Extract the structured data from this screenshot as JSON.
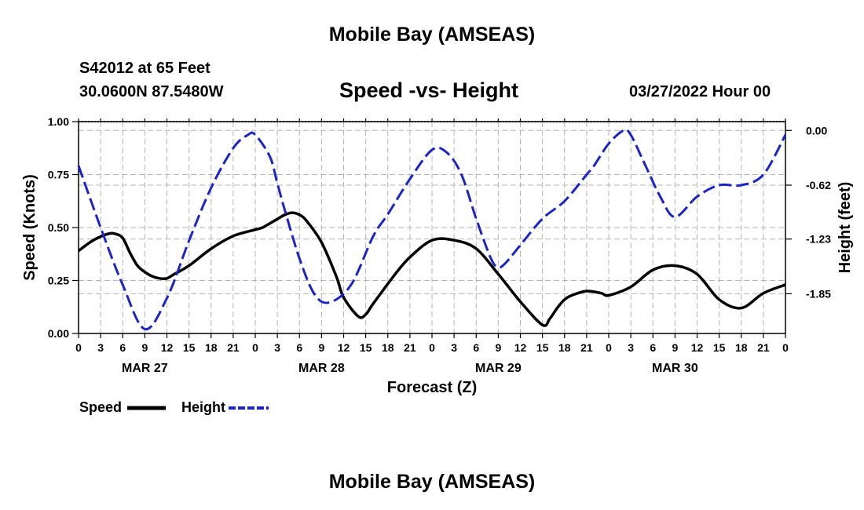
{
  "page": {
    "title": "Mobile Bay (AMSEAS)",
    "station": "S42012 at 65 Feet",
    "coordinates": "30.0600N  87.5480W",
    "datetime": "03/27/2022 Hour 00",
    "footer_title": "Mobile Bay (AMSEAS)"
  },
  "chart_data": {
    "type": "line",
    "title": "Speed -vs- Height",
    "xlabel": "Forecast (Z)",
    "ylabel_left": "Speed (Knots)",
    "ylabel_right": "Height (feet)",
    "x_unit": "forecast hour",
    "xlim": [
      0,
      96
    ],
    "ylim_left": [
      0,
      1.0
    ],
    "ylim_right": [
      -2.3,
      0.1
    ],
    "x_tick_hours": [
      0,
      3,
      6,
      9,
      12,
      15,
      18,
      21,
      24,
      27,
      30,
      33,
      36,
      39,
      42,
      45,
      48,
      51,
      54,
      57,
      60,
      63,
      66,
      69,
      72,
      75,
      78,
      81,
      84,
      87,
      90,
      93,
      96
    ],
    "x_tick_labels": [
      "0",
      "3",
      "6",
      "9",
      "12",
      "15",
      "18",
      "21",
      "0",
      "3",
      "6",
      "9",
      "12",
      "15",
      "18",
      "21",
      "0",
      "3",
      "6",
      "9",
      "12",
      "15",
      "18",
      "21",
      "0",
      "3",
      "6",
      "9",
      "12",
      "15",
      "18",
      "21",
      "0"
    ],
    "date_labels": [
      {
        "label": "MAR 27",
        "hour": 9
      },
      {
        "label": "MAR 28",
        "hour": 33
      },
      {
        "label": "MAR 29",
        "hour": 57
      },
      {
        "label": "MAR 30",
        "hour": 81
      }
    ],
    "y_left_ticks": [
      "0.00",
      "0.25",
      "0.50",
      "0.75",
      "1.00"
    ],
    "y_left_tick_values": [
      0,
      0.25,
      0.5,
      0.75,
      1.0
    ],
    "y_right_ticks": [
      "0.00",
      "-0.62",
      "-1.23",
      "-1.85"
    ],
    "y_right_tick_values": [
      0,
      -0.62,
      -1.23,
      -1.85
    ],
    "grid": true,
    "legend": "bottom-left",
    "series": [
      {
        "name": "Speed",
        "axis": "left",
        "style": "solid",
        "color": "#000000",
        "x": [
          0,
          2,
          4,
          5,
          6,
          7,
          8,
          9,
          10,
          11,
          12,
          13,
          15,
          18,
          21,
          24,
          25,
          26,
          27,
          28,
          29,
          30,
          31,
          33,
          35,
          36,
          38,
          39,
          40,
          43,
          45,
          48,
          51,
          54,
          57,
          60,
          63,
          64,
          65,
          66,
          67,
          69,
          71,
          72,
          75,
          78,
          81,
          84,
          87,
          90,
          93,
          96
        ],
        "values": [
          0.39,
          0.44,
          0.47,
          0.47,
          0.45,
          0.38,
          0.32,
          0.29,
          0.27,
          0.26,
          0.26,
          0.28,
          0.32,
          0.4,
          0.46,
          0.49,
          0.5,
          0.52,
          0.54,
          0.56,
          0.57,
          0.56,
          0.53,
          0.43,
          0.27,
          0.17,
          0.08,
          0.09,
          0.14,
          0.28,
          0.36,
          0.44,
          0.44,
          0.4,
          0.28,
          0.15,
          0.04,
          0.07,
          0.12,
          0.16,
          0.18,
          0.2,
          0.19,
          0.18,
          0.22,
          0.3,
          0.32,
          0.28,
          0.16,
          0.12,
          0.19,
          0.23
        ]
      },
      {
        "name": "Height",
        "axis": "right",
        "style": "dashed",
        "color": "#1a24c8",
        "x": [
          0,
          3,
          6,
          9,
          12,
          15,
          18,
          21,
          23,
          24,
          26,
          27,
          28,
          30,
          32,
          34,
          37,
          40,
          42,
          45,
          48,
          50,
          52,
          54,
          56,
          57,
          58,
          60,
          63,
          66,
          69,
          70,
          72,
          74,
          75,
          77,
          79,
          81,
          84,
          87,
          90,
          93,
          96
        ],
        "values": [
          -0.4,
          -1.1,
          -1.75,
          -2.25,
          -1.9,
          -1.25,
          -0.65,
          -0.2,
          -0.05,
          -0.05,
          -0.3,
          -0.6,
          -0.9,
          -1.45,
          -1.85,
          -1.95,
          -1.75,
          -1.2,
          -0.95,
          -0.55,
          -0.22,
          -0.25,
          -0.5,
          -1.0,
          -1.45,
          -1.55,
          -1.5,
          -1.3,
          -1.0,
          -0.8,
          -0.5,
          -0.4,
          -0.15,
          0.0,
          -0.05,
          -0.4,
          -0.75,
          -0.98,
          -0.75,
          -0.62,
          -0.62,
          -0.5,
          -0.05
        ]
      }
    ]
  }
}
